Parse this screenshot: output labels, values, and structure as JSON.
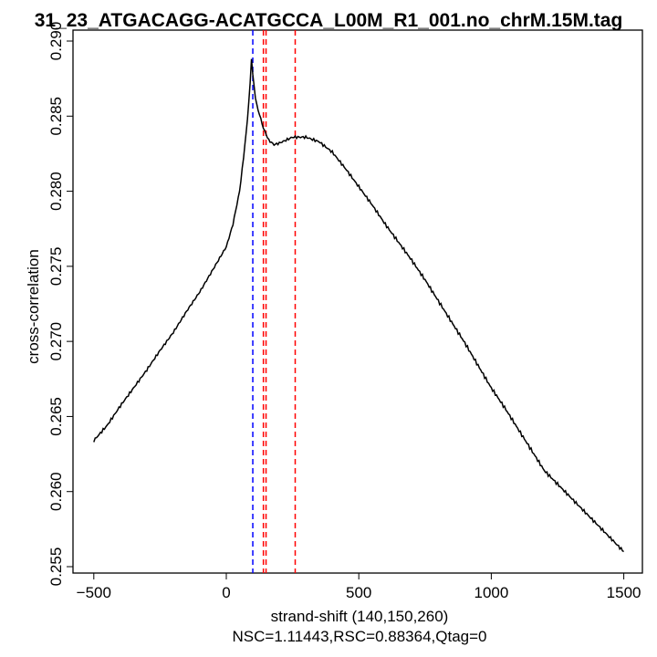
{
  "chart_data": {
    "type": "line",
    "title": "31_23_ATGACAGG-ACATGCCA_L00M_R1_001.no_chrM.15M.tag",
    "xlabel": "strand-shift (140,150,260)",
    "sublabel": "NSC=1.11443,RSC=0.88364,Qtag=0",
    "ylabel": "cross-correlation",
    "xlim": [
      -570,
      1570
    ],
    "ylim": [
      0.2545,
      0.2905
    ],
    "xticks": [
      -500,
      0,
      500,
      1000,
      1500
    ],
    "xtick_labels": [
      "−500",
      "0",
      "500",
      "1000",
      "1500"
    ],
    "yticks": [
      0.255,
      0.26,
      0.265,
      0.27,
      0.275,
      0.28,
      0.285,
      0.29
    ],
    "ytick_labels": [
      "0.255",
      "0.260",
      "0.265",
      "0.270",
      "0.275",
      "0.280",
      "0.285",
      "0.290"
    ],
    "series": [
      {
        "name": "cross-correlation",
        "color": "#000000",
        "x": [
          -500,
          -450,
          -400,
          -350,
          -300,
          -250,
          -200,
          -150,
          -100,
          -50,
          0,
          25,
          50,
          65,
          80,
          90,
          95,
          100,
          110,
          120,
          130,
          140,
          160,
          180,
          200,
          250,
          300,
          350,
          400,
          450,
          500,
          550,
          600,
          650,
          700,
          750,
          800,
          850,
          900,
          950,
          1000,
          1050,
          1100,
          1150,
          1200,
          1250,
          1300,
          1350,
          1400,
          1450,
          1500
        ],
        "y": [
          0.2634,
          0.2644,
          0.2657,
          0.2669,
          0.2681,
          0.2694,
          0.2706,
          0.272,
          0.2733,
          0.2748,
          0.2763,
          0.2778,
          0.28,
          0.2822,
          0.2848,
          0.2872,
          0.2888,
          0.2878,
          0.2862,
          0.2854,
          0.2848,
          0.2842,
          0.2834,
          0.2831,
          0.2832,
          0.2836,
          0.2836,
          0.2833,
          0.2826,
          0.2815,
          0.2803,
          0.2791,
          0.2778,
          0.2766,
          0.2754,
          0.2741,
          0.2727,
          0.2713,
          0.2699,
          0.2684,
          0.2669,
          0.2656,
          0.2642,
          0.2628,
          0.2614,
          0.2605,
          0.2596,
          0.2587,
          0.2578,
          0.2569,
          0.256
        ]
      }
    ],
    "vlines": [
      {
        "x": 100,
        "color": "#0000ff"
      },
      {
        "x": 140,
        "color": "#ff0000"
      },
      {
        "x": 150,
        "color": "#ff0000"
      },
      {
        "x": 260,
        "color": "#ff0000"
      }
    ],
    "grid": false,
    "legend": "none"
  }
}
